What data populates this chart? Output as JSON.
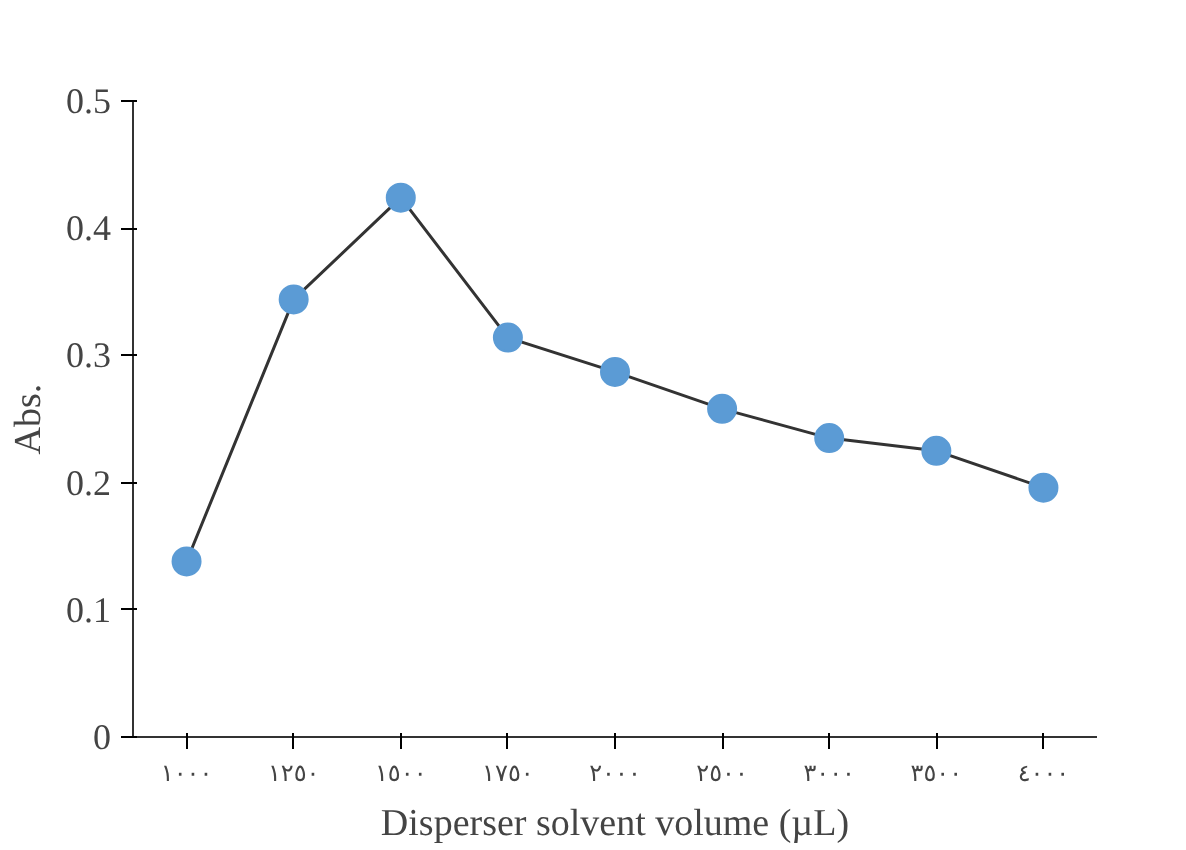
{
  "chart_data": {
    "type": "line",
    "xlabel": "Disperser solvent volume (µL)",
    "ylabel": "Abs.",
    "categories": [
      "١٠٠٠",
      "١٢٥٠",
      "١٥٠٠",
      "١٧٥٠",
      "٢٠٠٠",
      "٢٥٠٠",
      "٣٠٠٠",
      "٣٥٠٠",
      "٤٠٠٠"
    ],
    "series": [
      {
        "color": "#5b9bd5",
        "values": [
          0.138,
          0.344,
          0.424,
          0.314,
          0.287,
          0.258,
          0.235,
          0.225,
          0.196
        ]
      }
    ],
    "ylim": [
      0,
      0.5
    ],
    "yticks": [
      0,
      0.1,
      0.2,
      0.3,
      0.4,
      0.5
    ],
    "grid": false,
    "marker": "circle",
    "line_style": "solid"
  }
}
